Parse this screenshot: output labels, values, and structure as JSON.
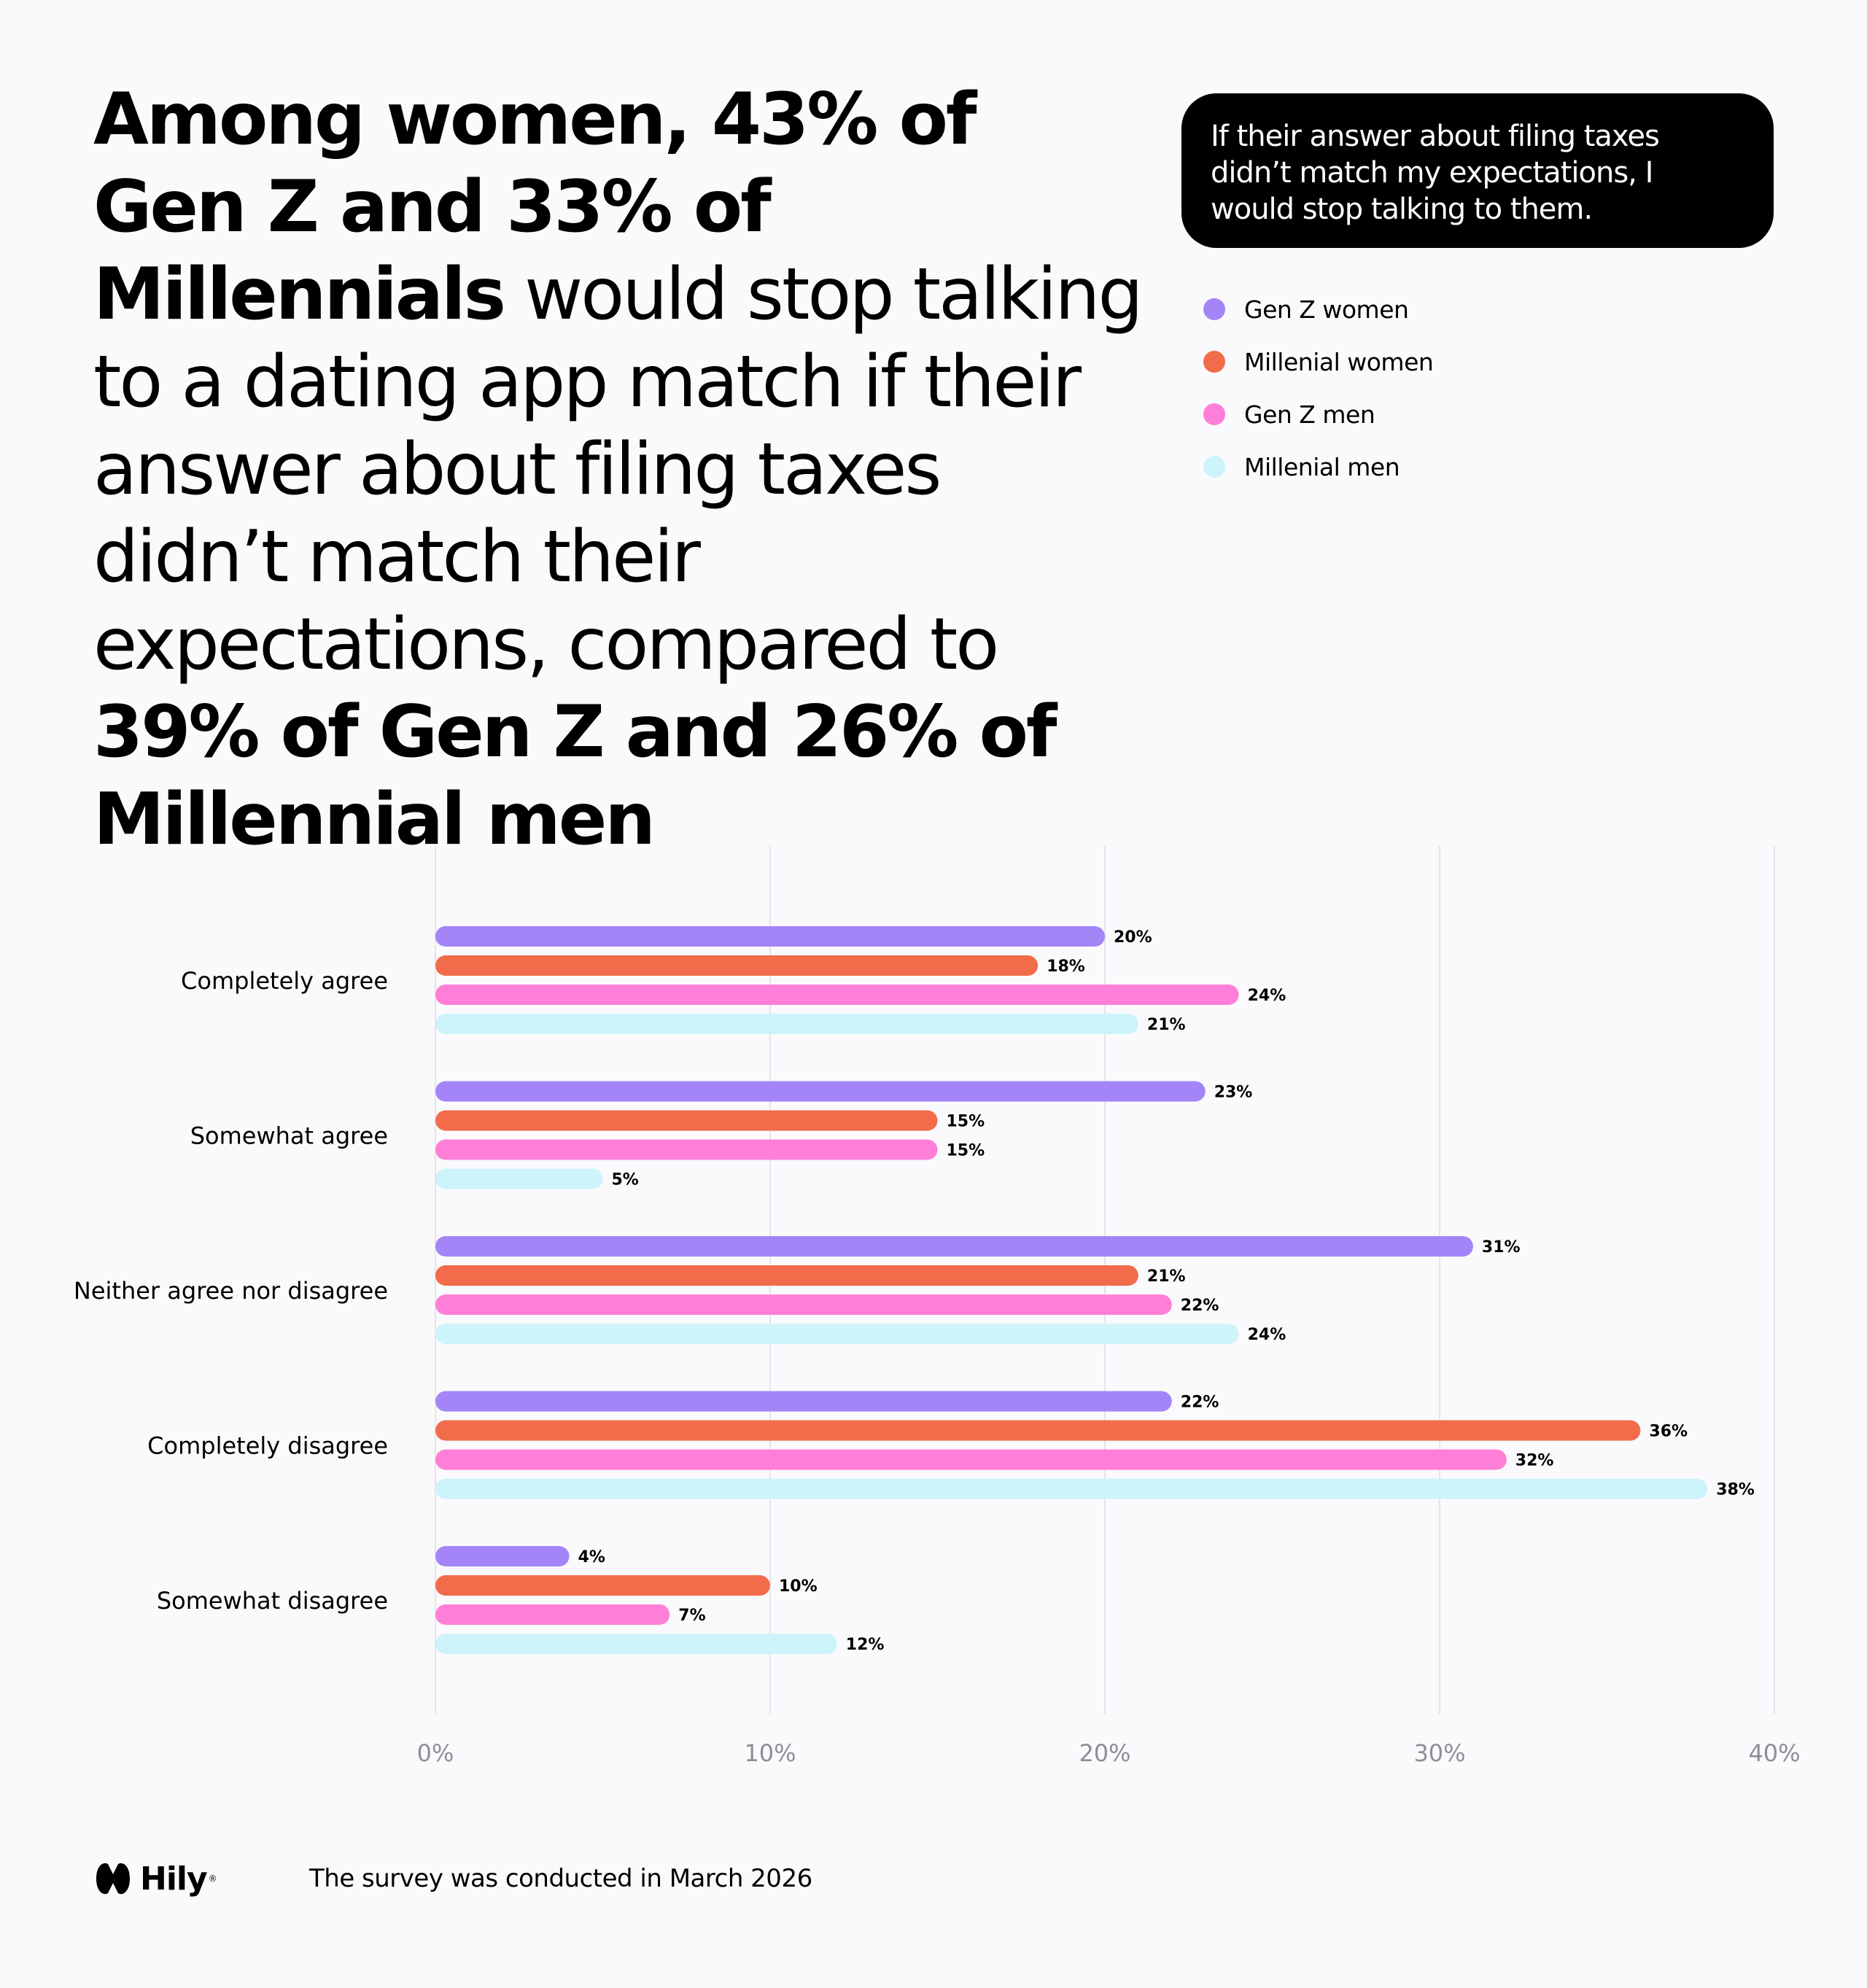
{
  "headline": {
    "p1": "Among women, 43% of Gen Z and 33% of Millennials",
    "p2": " would stop talking to a dating app match if their answer about filing taxes didn’t match their expectations, compared to ",
    "p3": "39% of Gen Z and 26% of Millennial men"
  },
  "callout": "If their answer about filing taxes didn’t match my expectations, I would stop talking to them.",
  "colors": {
    "background": "#fafafc",
    "gen_z_women": "#a385f7",
    "millenial_women": "#f26b4a",
    "gen_z_men": "#ff7fd8",
    "millenial_men": "#cdf3fb"
  },
  "chart_data": {
    "type": "bar",
    "orientation": "horizontal",
    "title": "If their answer about filing taxes didn’t match my expectations, I would stop talking to them.",
    "xlabel": "",
    "ylabel": "",
    "xlim": [
      0,
      40
    ],
    "x_ticks": [
      "0%",
      "10%",
      "20%",
      "30%",
      "40%"
    ],
    "grid": true,
    "legend_position": "top-right",
    "categories": [
      "Completely agree",
      "Somewhat agree",
      "Neither agree nor disagree",
      "Completely disagree",
      "Somewhat disagree"
    ],
    "series": [
      {
        "name": "Gen Z women",
        "color": "#a385f7",
        "values": [
          20,
          23,
          31,
          22,
          4
        ]
      },
      {
        "name": "Millenial women",
        "color": "#f26b4a",
        "values": [
          18,
          15,
          21,
          36,
          10
        ]
      },
      {
        "name": "Gen Z men",
        "color": "#ff7fd8",
        "values": [
          24,
          15,
          22,
          32,
          7
        ]
      },
      {
        "name": "Millenial men",
        "color": "#cdf3fb",
        "values": [
          21,
          5,
          24,
          38,
          12
        ]
      }
    ]
  },
  "footer": {
    "brand": "Hily",
    "brand_mark": "®",
    "note": "The survey was conducted in March 2026"
  }
}
